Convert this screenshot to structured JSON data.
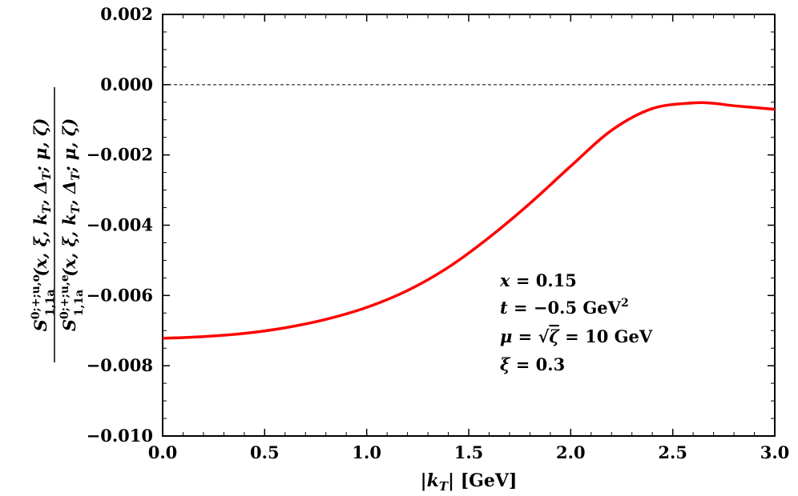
{
  "chart_data": {
    "type": "line",
    "xlabel": "|k_T| [GeV]",
    "ylabel": {
      "numerator": "Ŝ^{0;+;u,o}_{1,1a}(x, ξ, k_T, Δ_T; μ, ζ)",
      "denominator": "Ŝ^{0;+;u,e}_{1,1a}(x, ξ, k_T, Δ_T; μ, ζ)",
      "numerator_main": "S",
      "numerator_sup": "0;+;u,o",
      "numerator_sub": "1,1a",
      "numerator_args": "(x, ξ, k",
      "numerator_args_sub": "T",
      "numerator_args2": ", Δ",
      "numerator_args2_sub": "T",
      "numerator_args3": "; μ, ζ)",
      "denominator_main": "S",
      "denominator_sup": "0;+;u,e",
      "denominator_sub": "1,1a",
      "denominator_args": "(x, ξ, k",
      "denominator_args_sub": "T",
      "denominator_args2": ", Δ",
      "denominator_args2_sub": "T",
      "denominator_args3": "; μ, ζ)"
    },
    "xlabel_parts": {
      "bar_l": "|",
      "k": "k",
      "k_sub": "T",
      "bar_r": "|",
      "unit": " [GeV]"
    },
    "xlim": [
      0.0,
      3.0
    ],
    "ylim": [
      -0.01,
      0.002
    ],
    "xticks": [
      0.0,
      0.5,
      1.0,
      1.5,
      2.0,
      2.5,
      3.0
    ],
    "xtick_labels": [
      "0.0",
      "0.5",
      "1.0",
      "1.5",
      "2.0",
      "2.5",
      "3.0"
    ],
    "yticks": [
      -0.01,
      -0.008,
      -0.006,
      -0.004,
      -0.002,
      0.0,
      0.002
    ],
    "ytick_labels": [
      "−0.010",
      "−0.008",
      "−0.006",
      "−0.004",
      "−0.002",
      "0.000",
      "0.002"
    ],
    "reference_line": {
      "y": 0.0,
      "style": "dashed",
      "color": "#000000"
    },
    "series": [
      {
        "name": "ratio",
        "color": "#ff0000",
        "x": [
          0.0,
          0.2,
          0.4,
          0.6,
          0.8,
          1.0,
          1.2,
          1.4,
          1.6,
          1.8,
          2.0,
          2.2,
          2.4,
          2.6,
          2.7,
          2.8,
          3.0
        ],
        "y": [
          -0.00722,
          -0.00717,
          -0.00708,
          -0.00692,
          -0.00668,
          -0.00634,
          -0.00586,
          -0.0052,
          -0.00435,
          -0.00338,
          -0.00232,
          -0.0013,
          -0.00068,
          -0.00052,
          -0.00053,
          -0.0006,
          -0.0007
        ]
      }
    ],
    "annotations": [
      {
        "lhs": "x",
        "rhs": " = 0.15"
      },
      {
        "lhs": "t",
        "rhs": " = −0.5 GeV",
        "sup": "2"
      },
      {
        "lhs": "μ",
        "mid": " = √",
        "mid2": "ζ",
        "rhs": " = 10 GeV"
      },
      {
        "lhs": "ξ",
        "rhs": " = 0.3"
      }
    ]
  }
}
